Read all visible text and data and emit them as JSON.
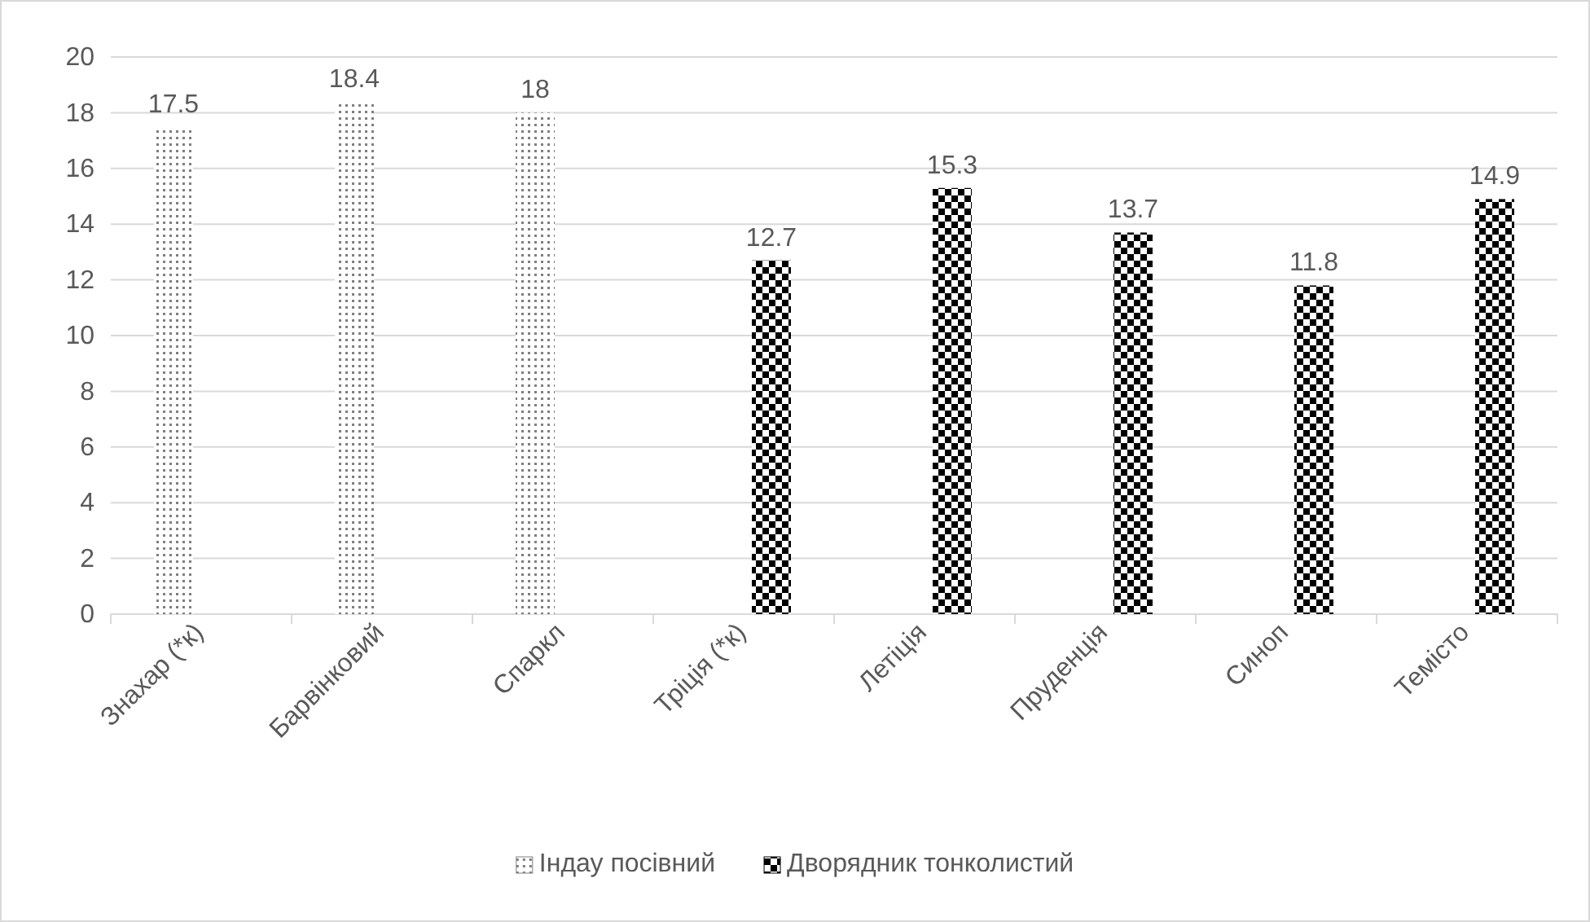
{
  "chart_data": {
    "type": "bar",
    "categories": [
      "Знахар (*к)",
      "Барвінковий",
      "Спаркл",
      "Тріція (*к)",
      "Летіція",
      "Пруденція",
      "Синоп",
      "Темісто"
    ],
    "series": [
      {
        "name": "Індау посівний",
        "color": "#7f7f7f",
        "values": [
          17.5,
          18.4,
          18,
          null,
          null,
          null,
          null,
          null
        ]
      },
      {
        "name": "Дворядник тонколистий",
        "color": "#000000",
        "values": [
          null,
          null,
          null,
          12.7,
          15.3,
          13.7,
          11.8,
          14.9
        ]
      }
    ],
    "ylim": [
      0,
      20
    ],
    "yticks": [
      0,
      2,
      4,
      6,
      8,
      10,
      12,
      14,
      16,
      18,
      20
    ],
    "grid": "y",
    "legend": "bottom",
    "data_labels": true
  }
}
